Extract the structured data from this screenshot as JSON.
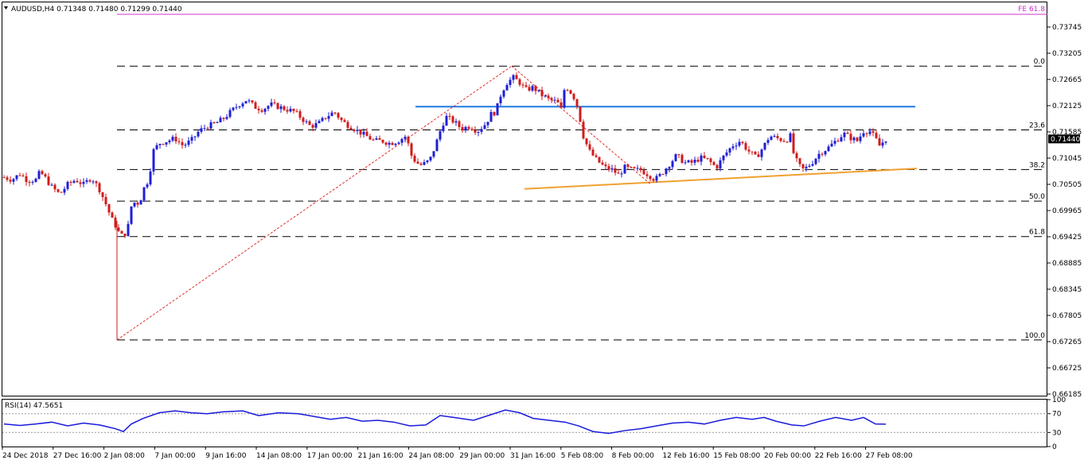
{
  "header": {
    "symbol": "AUDUSD,H4",
    "open": "0.71348",
    "high": "0.71480",
    "low": "0.71299",
    "close": "0.71440",
    "fe_label": "FE 61.8"
  },
  "price_tag": "0.71440",
  "colors": {
    "bull": "#1f1fd6",
    "bear": "#d11b1b",
    "resistance": "#1e7be0",
    "support": "#f0a030",
    "fib": "#000000",
    "fe": "#cc33cc",
    "rsi": "#1a1adb"
  },
  "chart_data": [
    {
      "type": "candlestick",
      "title": "AUDUSD,H4",
      "ylim": [
        0.66,
        0.7395
      ],
      "y_ticks": [
        "0.73745",
        "0.73205",
        "0.72665",
        "0.72125",
        "0.71585",
        "0.71045",
        "0.70505",
        "0.69965",
        "0.69425",
        "0.68885",
        "0.68345",
        "0.67805",
        "0.67265",
        "0.66725",
        "0.66185"
      ],
      "x_ticks": [
        "24 Dec 2018",
        "27 Dec 16:00",
        "2 Jan 08:00",
        "7 Jan 00:00",
        "9 Jan 16:00",
        "14 Jan 08:00",
        "17 Jan 00:00",
        "21 Jan 16:00",
        "24 Jan 08:00",
        "29 Jan 00:00",
        "31 Jan 16:00",
        "5 Feb 08:00",
        "8 Feb 00:00",
        "12 Feb 16:00",
        "15 Feb 08:00",
        "20 Feb 00:00",
        "22 Feb 16:00",
        "27 Feb 08:00"
      ],
      "close_path": [
        [
          0,
          0.7065
        ],
        [
          10,
          0.706
        ],
        [
          20,
          0.7072
        ],
        [
          30,
          0.7058
        ],
        [
          40,
          0.706
        ],
        [
          45,
          0.7075
        ],
        [
          50,
          0.7068
        ],
        [
          60,
          0.7045
        ],
        [
          70,
          0.703
        ],
        [
          80,
          0.705
        ],
        [
          90,
          0.706
        ],
        [
          100,
          0.705
        ],
        [
          110,
          0.7065
        ],
        [
          120,
          0.704
        ],
        [
          128,
          0.701
        ],
        [
          135,
          0.698
        ],
        [
          142,
          0.696
        ],
        [
          146,
          0.6945
        ],
        [
          150,
          0.6945
        ],
        [
          155,
          0.6955
        ],
        [
          160,
          0.7005
        ],
        [
          165,
          0.7015
        ],
        [
          170,
          0.701
        ],
        [
          175,
          0.704
        ],
        [
          180,
          0.7055
        ],
        [
          185,
          0.709
        ],
        [
          188,
          0.712
        ],
        [
          195,
          0.7135
        ],
        [
          205,
          0.714
        ],
        [
          215,
          0.7145
        ],
        [
          225,
          0.713
        ],
        [
          235,
          0.714
        ],
        [
          245,
          0.716
        ],
        [
          255,
          0.717
        ],
        [
          265,
          0.7175
        ],
        [
          275,
          0.7185
        ],
        [
          285,
          0.72
        ],
        [
          295,
          0.7215
        ],
        [
          305,
          0.7225
        ],
        [
          315,
          0.721
        ],
        [
          325,
          0.7205
        ],
        [
          335,
          0.7215
        ],
        [
          345,
          0.721
        ],
        [
          355,
          0.7205
        ],
        [
          365,
          0.72
        ],
        [
          375,
          0.7185
        ],
        [
          385,
          0.717
        ],
        [
          395,
          0.7175
        ],
        [
          405,
          0.719
        ],
        [
          415,
          0.72
        ],
        [
          425,
          0.718
        ],
        [
          435,
          0.717
        ],
        [
          445,
          0.716
        ],
        [
          455,
          0.715
        ],
        [
          465,
          0.714
        ],
        [
          475,
          0.714
        ],
        [
          485,
          0.7135
        ],
        [
          495,
          0.714
        ],
        [
          505,
          0.715
        ],
        [
          512,
          0.711
        ],
        [
          518,
          0.7095
        ],
        [
          525,
          0.709
        ],
        [
          535,
          0.71
        ],
        [
          542,
          0.713
        ],
        [
          548,
          0.716
        ],
        [
          555,
          0.719
        ],
        [
          565,
          0.718
        ],
        [
          575,
          0.7165
        ],
        [
          585,
          0.717
        ],
        [
          595,
          0.716
        ],
        [
          605,
          0.7175
        ],
        [
          612,
          0.7195
        ],
        [
          618,
          0.72
        ],
        [
          625,
          0.724
        ],
        [
          632,
          0.726
        ],
        [
          640,
          0.727
        ],
        [
          648,
          0.726
        ],
        [
          655,
          0.7245
        ],
        [
          665,
          0.725
        ],
        [
          675,
          0.7235
        ],
        [
          685,
          0.7225
        ],
        [
          695,
          0.722
        ],
        [
          700,
          0.7205
        ],
        [
          705,
          0.7255
        ],
        [
          712,
          0.724
        ],
        [
          718,
          0.7225
        ],
        [
          722,
          0.72
        ],
        [
          728,
          0.715
        ],
        [
          735,
          0.712
        ],
        [
          745,
          0.71
        ],
        [
          755,
          0.7085
        ],
        [
          765,
          0.708
        ],
        [
          772,
          0.707
        ],
        [
          780,
          0.7085
        ],
        [
          790,
          0.708
        ],
        [
          800,
          0.708
        ],
        [
          810,
          0.707
        ],
        [
          818,
          0.706
        ],
        [
          825,
          0.707
        ],
        [
          835,
          0.709
        ],
        [
          845,
          0.711
        ],
        [
          855,
          0.7095
        ],
        [
          865,
          0.7095
        ],
        [
          875,
          0.7105
        ],
        [
          885,
          0.71
        ],
        [
          895,
          0.7085
        ],
        [
          905,
          0.711
        ],
        [
          915,
          0.713
        ],
        [
          925,
          0.714
        ],
        [
          935,
          0.712
        ],
        [
          945,
          0.7105
        ],
        [
          955,
          0.713
        ],
        [
          962,
          0.715
        ],
        [
          972,
          0.7145
        ],
        [
          982,
          0.714
        ],
        [
          988,
          0.715
        ],
        [
          992,
          0.7115
        ],
        [
          998,
          0.709
        ],
        [
          1005,
          0.708
        ],
        [
          1015,
          0.7095
        ],
        [
          1025,
          0.7115
        ],
        [
          1035,
          0.7125
        ],
        [
          1045,
          0.714
        ],
        [
          1055,
          0.7155
        ],
        [
          1065,
          0.7145
        ],
        [
          1072,
          0.714
        ],
        [
          1080,
          0.716
        ],
        [
          1088,
          0.716
        ],
        [
          1095,
          0.7145
        ],
        [
          1100,
          0.713
        ],
        [
          1108,
          0.7144
        ]
      ],
      "ohlc_last": {
        "open": 0.71348,
        "high": 0.7148,
        "low": 0.71299,
        "close": 0.7144
      },
      "horizontal_levels": [
        {
          "name": "0.0",
          "value": 0.7294
        },
        {
          "name": "23.6",
          "value": 0.71625
        },
        {
          "name": "38.2",
          "value": 0.7081
        },
        {
          "name": "50.0",
          "value": 0.7016
        },
        {
          "name": "61.8",
          "value": 0.6943
        },
        {
          "name": "100.0",
          "value": 0.673
        }
      ],
      "fe_level": 0.7395,
      "resistance_value": 0.72105,
      "support_start": 0.7041,
      "support_end": 0.7083
    },
    {
      "type": "line",
      "title": "RSI(14) 47.5651",
      "ylim": [
        0,
        100
      ],
      "y_ticks": [
        "100",
        "70",
        "30",
        "0"
      ],
      "levels": [
        70,
        30
      ],
      "values_path": [
        [
          0,
          48
        ],
        [
          20,
          45
        ],
        [
          40,
          48
        ],
        [
          60,
          52
        ],
        [
          80,
          44
        ],
        [
          100,
          50
        ],
        [
          120,
          46
        ],
        [
          140,
          38
        ],
        [
          150,
          32
        ],
        [
          160,
          48
        ],
        [
          175,
          60
        ],
        [
          195,
          72
        ],
        [
          215,
          76
        ],
        [
          235,
          72
        ],
        [
          255,
          70
        ],
        [
          275,
          74
        ],
        [
          300,
          76
        ],
        [
          320,
          66
        ],
        [
          345,
          72
        ],
        [
          370,
          70
        ],
        [
          390,
          64
        ],
        [
          410,
          58
        ],
        [
          430,
          62
        ],
        [
          450,
          54
        ],
        [
          470,
          56
        ],
        [
          490,
          52
        ],
        [
          510,
          44
        ],
        [
          530,
          46
        ],
        [
          548,
          66
        ],
        [
          565,
          62
        ],
        [
          590,
          56
        ],
        [
          612,
          68
        ],
        [
          630,
          78
        ],
        [
          648,
          72
        ],
        [
          665,
          60
        ],
        [
          685,
          56
        ],
        [
          705,
          52
        ],
        [
          722,
          44
        ],
        [
          740,
          32
        ],
        [
          760,
          28
        ],
        [
          780,
          34
        ],
        [
          800,
          38
        ],
        [
          820,
          44
        ],
        [
          840,
          50
        ],
        [
          860,
          52
        ],
        [
          880,
          48
        ],
        [
          900,
          56
        ],
        [
          920,
          62
        ],
        [
          940,
          58
        ],
        [
          955,
          62
        ],
        [
          970,
          54
        ],
        [
          990,
          46
        ],
        [
          1005,
          44
        ],
        [
          1025,
          54
        ],
        [
          1045,
          62
        ],
        [
          1065,
          56
        ],
        [
          1080,
          62
        ],
        [
          1095,
          48
        ],
        [
          1108,
          47.5651
        ]
      ]
    }
  ]
}
